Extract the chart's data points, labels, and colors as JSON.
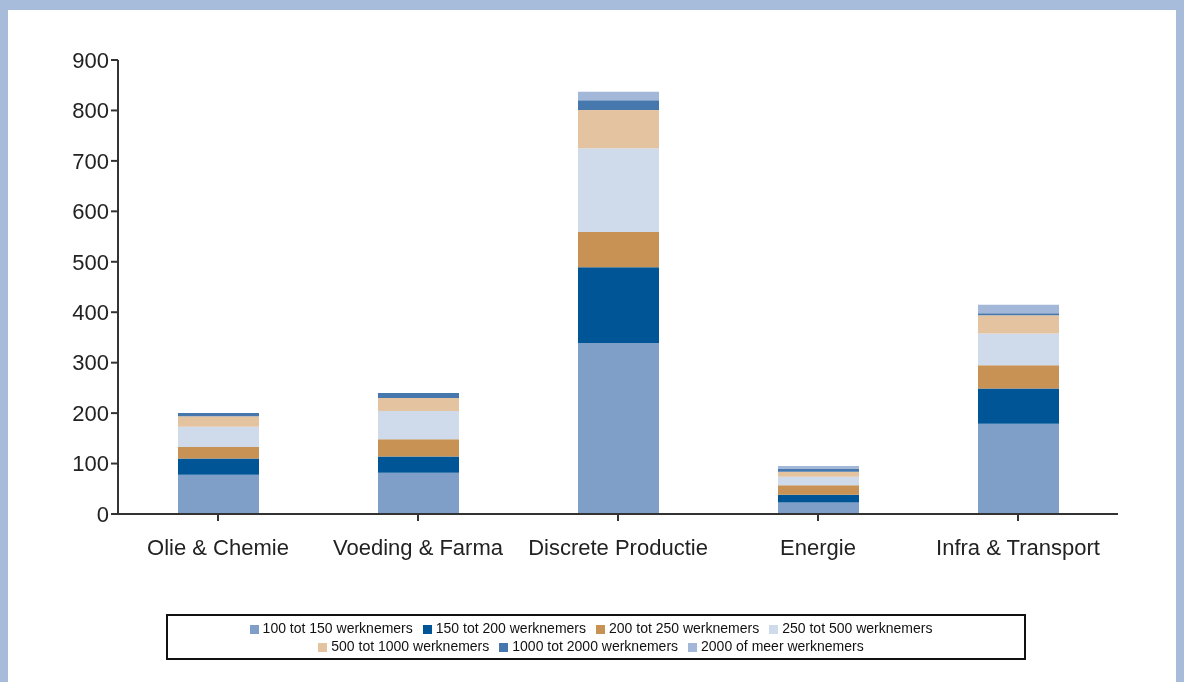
{
  "chart_data": {
    "type": "bar",
    "stacked": true,
    "categories": [
      "Olie & Chemie",
      "Voeding & Farma",
      "Discrete Productie",
      "Energie",
      "Infra & Transport"
    ],
    "series": [
      {
        "name": "100 tot 150 werknemers",
        "color": "#7f9fc8",
        "values": [
          78,
          82,
          339,
          23,
          179
        ]
      },
      {
        "name": "150 tot 200 werknemers",
        "color": "#005596",
        "values": [
          32,
          32,
          150,
          15,
          70
        ]
      },
      {
        "name": "200 tot 250 werknemers",
        "color": "#c89254",
        "values": [
          23,
          34,
          70,
          19,
          46
        ]
      },
      {
        "name": "250 tot 500 werknemers",
        "color": "#cfdbea",
        "values": [
          40,
          56,
          166,
          17,
          63
        ]
      },
      {
        "name": "500 tot 1000 werknemers",
        "color": "#e3c3a0",
        "values": [
          21,
          26,
          76,
          10,
          36
        ]
      },
      {
        "name": "1000 tot 2000 werknemers",
        "color": "#4677ad",
        "values": [
          6,
          10,
          19,
          5,
          4
        ]
      },
      {
        "name": "2000 of meer werknemers",
        "color": "#a3b7d8",
        "values": [
          0,
          0,
          17,
          6,
          17
        ]
      }
    ],
    "ylim": [
      0,
      900
    ],
    "yticks": [
      0,
      100,
      200,
      300,
      400,
      500,
      600,
      700,
      800,
      900
    ],
    "grid": false,
    "legend": "bottom"
  }
}
